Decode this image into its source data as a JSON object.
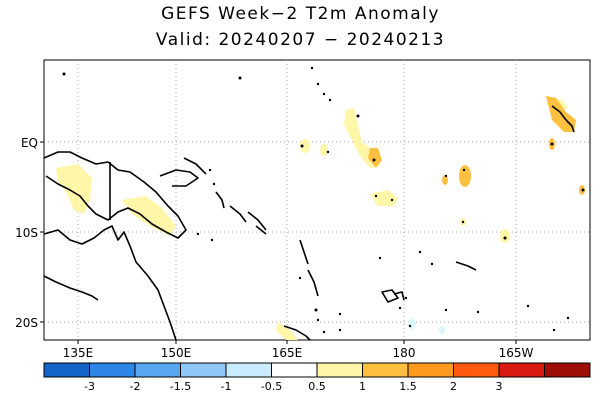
{
  "title": "GEFS Week−2 T2m Anomaly",
  "subtitle": "Valid: 20240207 − 20240213",
  "lat_labels": [
    "EQ",
    "10S",
    "20S"
  ],
  "lon_labels": [
    "135E",
    "150E",
    "165E",
    "180",
    "165W"
  ],
  "colorbar": {
    "labels": [
      "-3",
      "-2",
      "-1.5",
      "-1",
      "-0.5",
      "0.5",
      "1",
      "1.5",
      "2",
      "3"
    ],
    "colors": [
      "#1564c8",
      "#2d85e6",
      "#58a6f0",
      "#8fc8f6",
      "#c9ecfd",
      "#ffffff",
      "#fff6a8",
      "#ffc040",
      "#ff9a20",
      "#ff5a10",
      "#d81a10",
      "#a00e08"
    ]
  },
  "anomaly_colors": {
    "light": "#fff6a8",
    "medium": "#ffc040",
    "faint_cool": "#d8f6fb"
  }
}
